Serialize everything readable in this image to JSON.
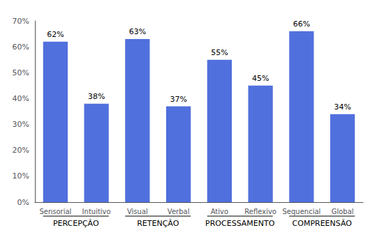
{
  "chart_data": {
    "type": "bar",
    "categories": [
      "Sensorial",
      "Intuitivo",
      "Visual",
      "Verbal",
      "Ativo",
      "Reflexivo",
      "Sequencial",
      "Global"
    ],
    "values": [
      62,
      38,
      63,
      37,
      55,
      45,
      66,
      34
    ],
    "value_labels": [
      "62%",
      "38%",
      "63%",
      "37%",
      "55%",
      "45%",
      "66%",
      "34%"
    ],
    "data_labels": true,
    "ylim": [
      0,
      70
    ],
    "yticks": [
      {
        "value": 0,
        "label": "0%"
      },
      {
        "value": 10,
        "label": "10%"
      },
      {
        "value": 20,
        "label": "20%"
      },
      {
        "value": 30,
        "label": "30%"
      },
      {
        "value": 40,
        "label": "40%"
      },
      {
        "value": 50,
        "label": "50%"
      },
      {
        "value": 60,
        "label": "60%"
      },
      {
        "value": 70,
        "label": "70%"
      }
    ],
    "grid": false,
    "annotations": [
      {
        "text": "PERCEPÇÃO",
        "categories": [
          "Sensorial",
          "Intuitivo"
        ]
      },
      {
        "text": "RETENÇÃO",
        "categories": [
          "Visual",
          "Verbal"
        ]
      },
      {
        "text": "PROCESSAMENTO",
        "categories": [
          "Ativo",
          "Reflexivo"
        ]
      },
      {
        "text": "COMPREENSÃO",
        "categories": [
          "Sequencial",
          "Global"
        ]
      }
    ]
  }
}
